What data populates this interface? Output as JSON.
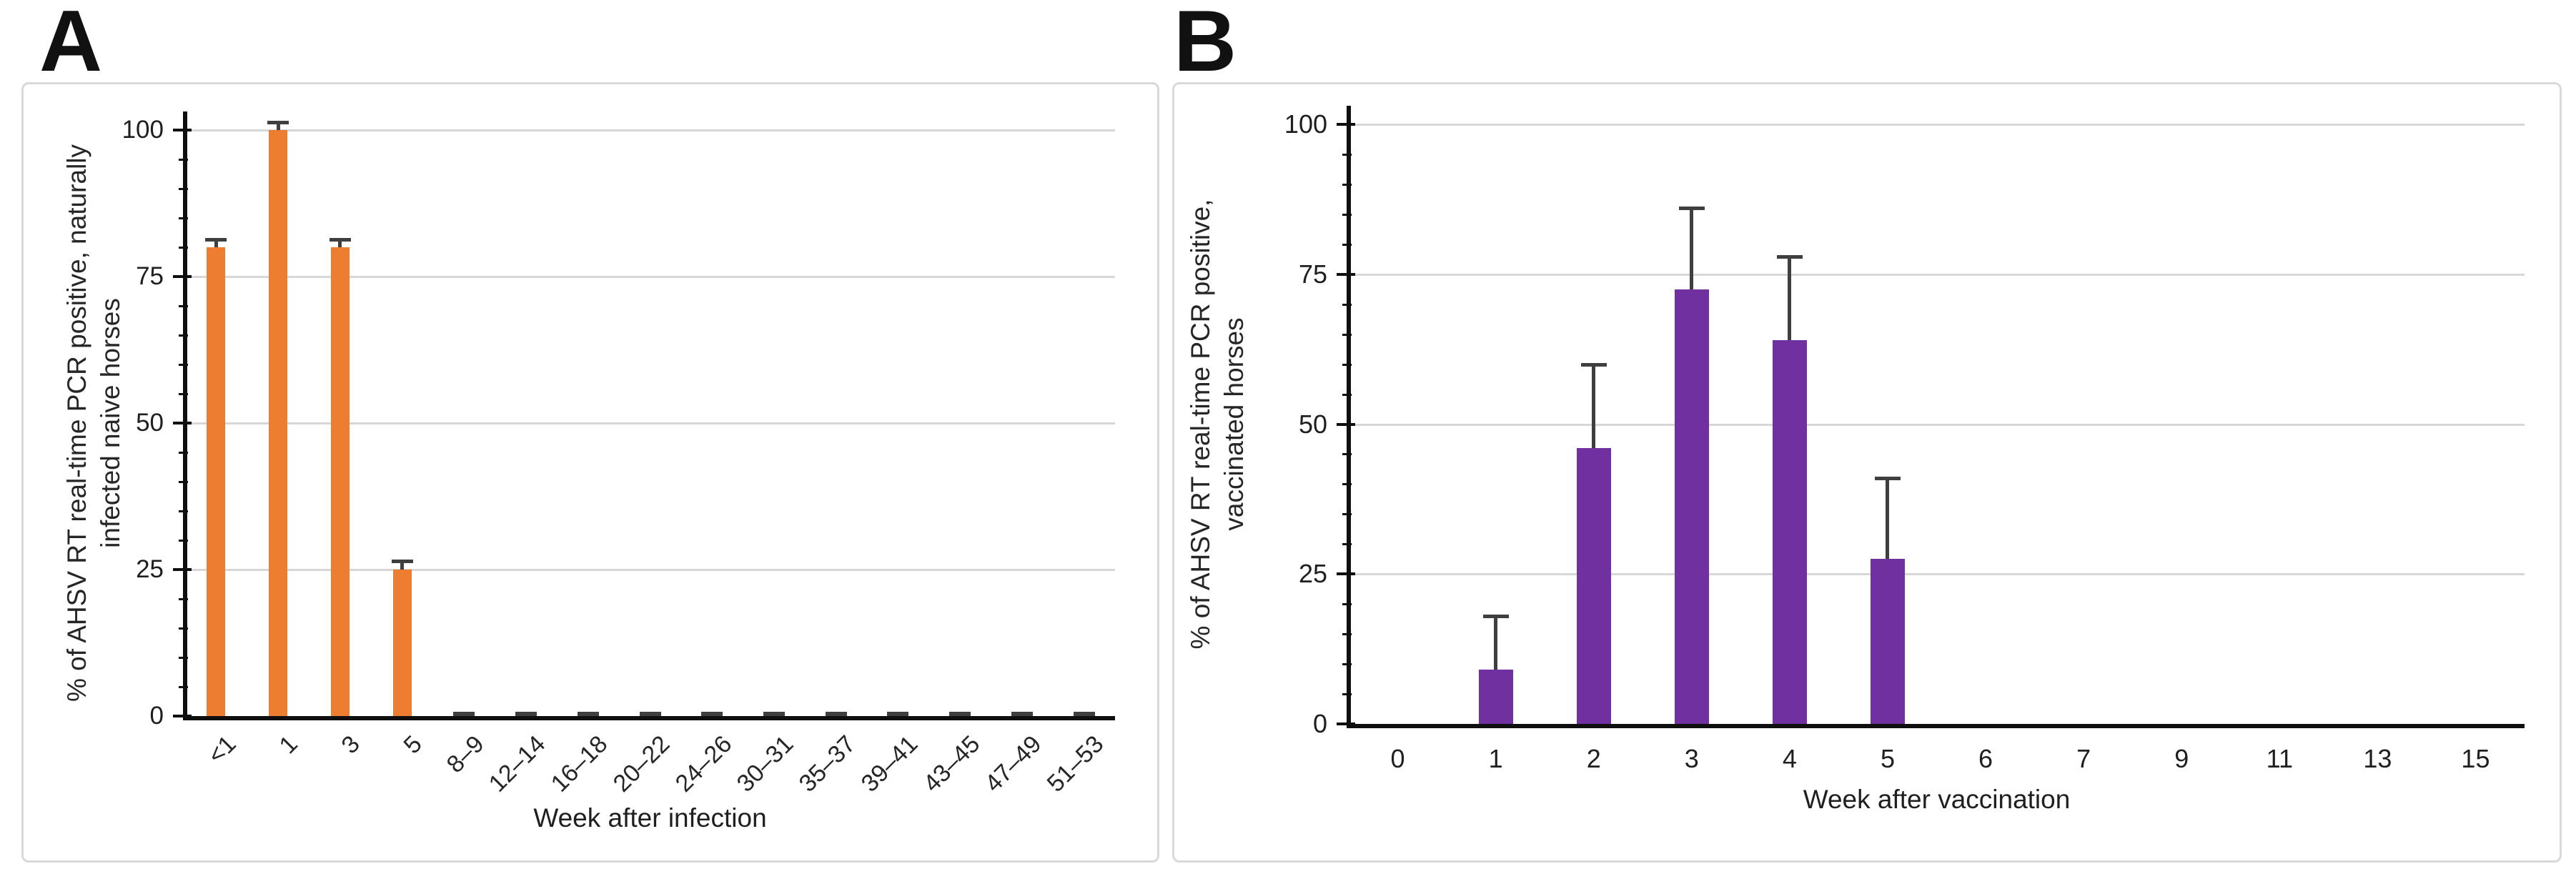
{
  "figure": {
    "background": "#ffffff",
    "panel_border_color": "#d9d9d9",
    "gridline_color": "#d7d7d7",
    "axis_color": "#0f0f0f",
    "error_bar_color": "#3f3f3f"
  },
  "chart_data": [
    {
      "type": "bar",
      "panel_label": "A",
      "xlabel": "Week after infection",
      "ylabel_lines": [
        "% of AHSV RT real-time PCR positive, naturally",
        "infected naive horses"
      ],
      "categories": [
        "<1",
        "1",
        "3",
        "5",
        "8–9",
        "12–14",
        "16–18",
        "20–22",
        "24–26",
        "30–31",
        "35–37",
        "39–41",
        "43–45",
        "47–49",
        "51–53"
      ],
      "values": [
        80,
        100,
        80,
        25,
        0.7,
        0.7,
        0.7,
        0.7,
        0.7,
        0.7,
        0.7,
        0.7,
        0.7,
        0.7,
        0.7
      ],
      "error_up": [
        1.3,
        1.3,
        1.3,
        1.5,
        0,
        0,
        0,
        0,
        0,
        0,
        0,
        0,
        0,
        0,
        0
      ],
      "bar_color": "#ED7D31",
      "zero_marker_color": "#3f3f3f",
      "ylim": [
        0,
        100
      ],
      "yticks": [
        0,
        25,
        50,
        75,
        100
      ],
      "minor_tick_step": 5,
      "grid": true,
      "legend": "none",
      "x_label_rotation": -45
    },
    {
      "type": "bar",
      "panel_label": "B",
      "xlabel": "Week after vaccination",
      "ylabel_lines": [
        "% of AHSV RT real-time PCR positive,",
        "vaccinated horses"
      ],
      "categories": [
        "0",
        "1",
        "2",
        "3",
        "4",
        "5",
        "6",
        "7",
        "9",
        "11",
        "13",
        "15"
      ],
      "values": [
        0,
        9,
        46,
        72.5,
        64,
        27.5,
        0,
        0,
        0,
        0,
        0,
        0
      ],
      "error_up": [
        0,
        9,
        14,
        13.5,
        14,
        13.5,
        0,
        0,
        0,
        0,
        0,
        0
      ],
      "bar_color": "#7030A0",
      "zero_marker_color": "#3f3f3f",
      "ylim": [
        0,
        100
      ],
      "yticks": [
        0,
        25,
        50,
        75,
        100
      ],
      "minor_tick_step": 5,
      "grid": true,
      "legend": "none",
      "x_label_rotation": 0
    }
  ]
}
